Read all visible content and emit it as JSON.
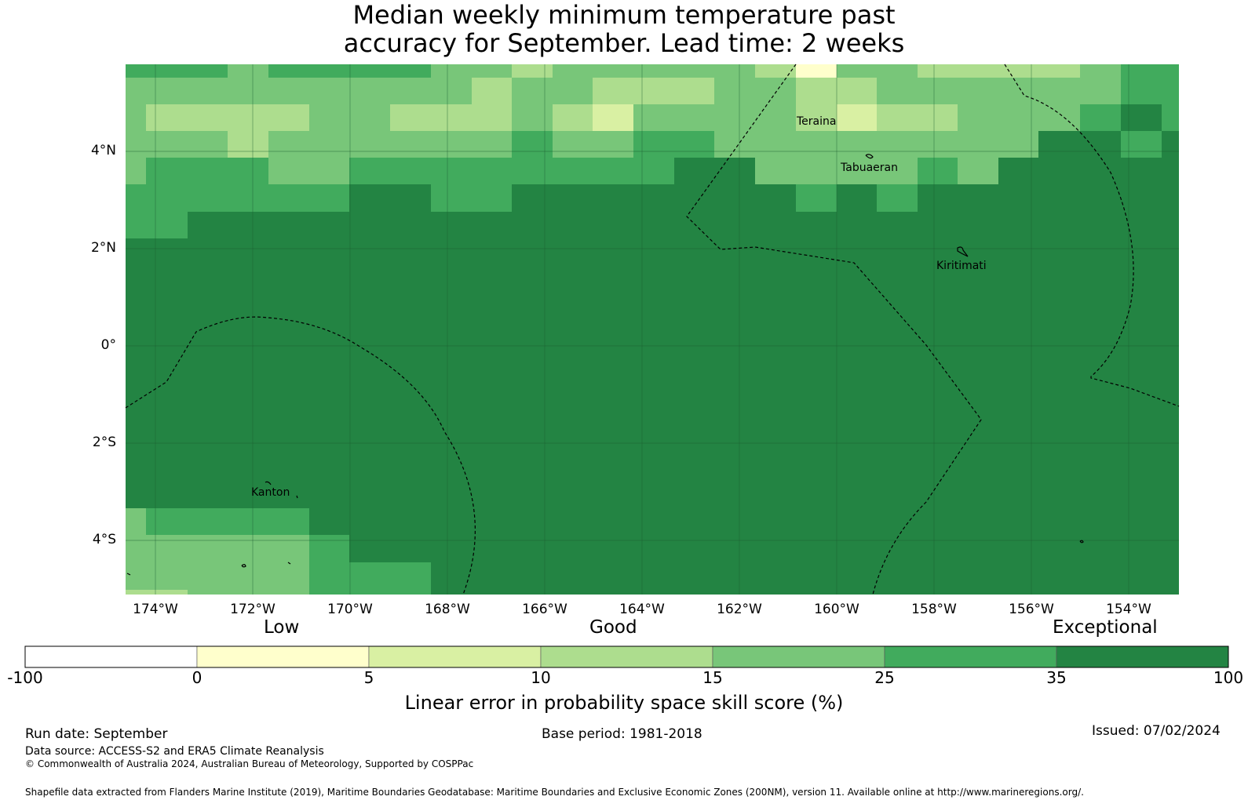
{
  "title": {
    "line1": "Median weekly minimum temperature past",
    "line2": "accuracy for September. Lead time: 2 weeks"
  },
  "map": {
    "lat_labels": [
      "4°N",
      "2°N",
      "0°",
      "2°S",
      "4°S"
    ],
    "lon_labels": [
      "174°W",
      "172°W",
      "170°W",
      "168°W",
      "166°W",
      "164°W",
      "162°W",
      "160°W",
      "158°W",
      "156°W",
      "154°W"
    ],
    "places": [
      "Teraina",
      "Tabuaeran",
      "Kiritimati",
      "Kanton"
    ]
  },
  "legend": {
    "categories": [
      "Low",
      "Good",
      "Exceptional"
    ],
    "ticks": [
      "-100",
      "0",
      "5",
      "10",
      "15",
      "25",
      "35",
      "100"
    ],
    "colors": [
      "#ffffff",
      "#ffffcc",
      "#d9f0a3",
      "#addd8e",
      "#78c679",
      "#41ab5d",
      "#238443"
    ],
    "title": "Linear error in probability space skill score (%)"
  },
  "footer": {
    "run_date": "Run date: September",
    "base_period": "Base period: 1981-2018",
    "issued": "Issued: 07/02/2024",
    "data_source": "Data source: ACCESS-S2 and ERA5 Climate Reanalysis",
    "copyright": "© Commonwealth of Australia 2024, Australian Bureau of Meteorology, Supported by COSPPac",
    "shapefile": "Shapefile data extracted from Flanders Marine Institute (2019), Maritime Boundaries Geodatabase: Maritime Boundaries and Exclusive Economic Zones (200NM), version 11. Available online at http://www.marineregions.org/."
  }
}
